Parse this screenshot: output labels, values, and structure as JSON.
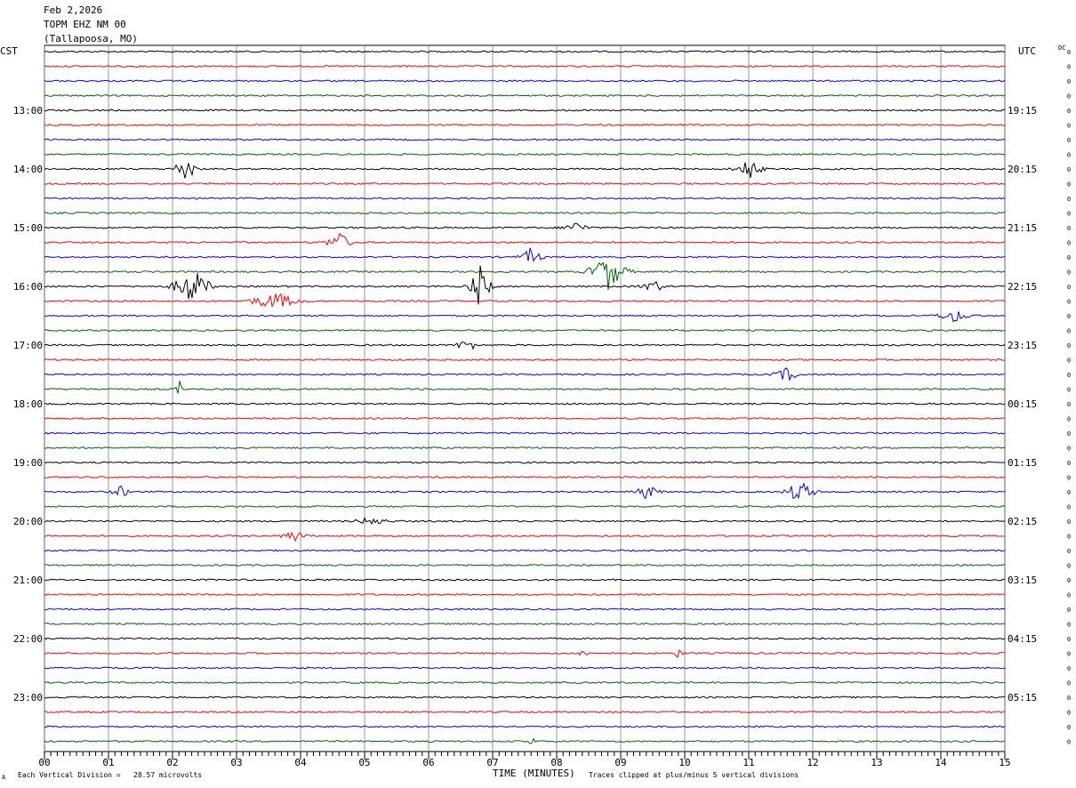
{
  "header": {
    "date": "Feb 2,2026",
    "station": "TOPM EHZ NM 00",
    "location": "(Tallapoosa, MO)"
  },
  "left_zone": "CST",
  "right_zone": "UTC",
  "dc_label": "DC",
  "footer": {
    "scale_note": "Each Vertical Division =   28.57 microvolts",
    "xaxis_title": "TIME (MINUTES)",
    "clip_note": "Traces clipped at plus/minus 5 vertical divisions",
    "corner_mark": "A"
  },
  "colors": {
    "trace_cycle": [
      "#000000",
      "#ff0000",
      "#0000ff",
      "#006400"
    ],
    "grid": "#808080"
  },
  "chart_data": {
    "type": "line",
    "title": "",
    "xlabel": "TIME (MINUTES)",
    "xlim": [
      0,
      15
    ],
    "x_ticks": [
      "00",
      "01",
      "02",
      "03",
      "04",
      "05",
      "06",
      "07",
      "08",
      "09",
      "10",
      "11",
      "12",
      "13",
      "14",
      "15"
    ],
    "trace_count": 48,
    "left_hour_labels": [
      {
        "row": 4,
        "text": "13:00"
      },
      {
        "row": 8,
        "text": "14:00"
      },
      {
        "row": 12,
        "text": "15:00"
      },
      {
        "row": 16,
        "text": "16:00"
      },
      {
        "row": 20,
        "text": "17:00"
      },
      {
        "row": 24,
        "text": "18:00"
      },
      {
        "row": 28,
        "text": "19:00"
      },
      {
        "row": 32,
        "text": "20:00"
      },
      {
        "row": 36,
        "text": "21:00"
      },
      {
        "row": 40,
        "text": "22:00"
      },
      {
        "row": 44,
        "text": "23:00"
      }
    ],
    "right_hour_labels": [
      {
        "row": 4,
        "text": "19:15"
      },
      {
        "row": 8,
        "text": "20:15"
      },
      {
        "row": 12,
        "text": "21:15"
      },
      {
        "row": 16,
        "text": "22:15"
      },
      {
        "row": 20,
        "text": "23:15"
      },
      {
        "row": 24,
        "text": "00:15"
      },
      {
        "row": 28,
        "text": "01:15"
      },
      {
        "row": 32,
        "text": "02:15"
      },
      {
        "row": 36,
        "text": "03:15"
      },
      {
        "row": 40,
        "text": "04:15"
      },
      {
        "row": 44,
        "text": "05:15"
      }
    ],
    "dc_offsets": [
      "0",
      "0",
      "0",
      "0",
      "0",
      "0",
      "0",
      "0",
      "0",
      "0",
      "0",
      "0",
      "0",
      "0",
      "0",
      "0",
      "0",
      "0",
      "0",
      "0",
      "0",
      "0",
      "0",
      "0",
      "0",
      "0",
      "0",
      "0",
      "0",
      "0",
      "0",
      "0",
      "0",
      "0",
      "0",
      "0",
      "0",
      "0",
      "0",
      "0",
      "0",
      "0",
      "0",
      "0",
      "0",
      "0",
      "0",
      "0"
    ],
    "events": [
      {
        "row": 8,
        "minute": 2.2,
        "amp": 2.0,
        "dur": 0.5
      },
      {
        "row": 8,
        "minute": 11.0,
        "amp": 1.6,
        "dur": 0.6
      },
      {
        "row": 12,
        "minute": 8.3,
        "amp": 0.8,
        "dur": 0.6
      },
      {
        "row": 13,
        "minute": 4.6,
        "amp": 1.4,
        "dur": 0.6
      },
      {
        "row": 14,
        "minute": 7.6,
        "amp": 1.3,
        "dur": 0.5
      },
      {
        "row": 15,
        "minute": 8.8,
        "amp": 2.6,
        "dur": 0.9
      },
      {
        "row": 16,
        "minute": 2.3,
        "amp": 2.6,
        "dur": 0.9
      },
      {
        "row": 16,
        "minute": 6.8,
        "amp": 3.0,
        "dur": 0.5
      },
      {
        "row": 16,
        "minute": 9.5,
        "amp": 1.0,
        "dur": 0.5
      },
      {
        "row": 17,
        "minute": 3.6,
        "amp": 1.2,
        "dur": 1.3
      },
      {
        "row": 18,
        "minute": 14.2,
        "amp": 0.9,
        "dur": 0.8
      },
      {
        "row": 20,
        "minute": 6.6,
        "amp": 0.9,
        "dur": 0.5
      },
      {
        "row": 22,
        "minute": 11.6,
        "amp": 1.0,
        "dur": 0.6
      },
      {
        "row": 23,
        "minute": 2.1,
        "amp": 2.0,
        "dur": 0.05
      },
      {
        "row": 30,
        "minute": 1.2,
        "amp": 0.8,
        "dur": 0.4
      },
      {
        "row": 30,
        "minute": 9.4,
        "amp": 1.0,
        "dur": 0.6
      },
      {
        "row": 30,
        "minute": 11.8,
        "amp": 1.6,
        "dur": 0.7
      },
      {
        "row": 32,
        "minute": 5.1,
        "amp": 0.6,
        "dur": 0.8
      },
      {
        "row": 33,
        "minute": 3.9,
        "amp": 0.8,
        "dur": 0.6
      },
      {
        "row": 41,
        "minute": 8.4,
        "amp": 0.6,
        "dur": 0.2
      },
      {
        "row": 41,
        "minute": 9.9,
        "amp": 0.6,
        "dur": 0.2
      },
      {
        "row": 47,
        "minute": 7.6,
        "amp": 0.7,
        "dur": 0.2
      }
    ]
  }
}
